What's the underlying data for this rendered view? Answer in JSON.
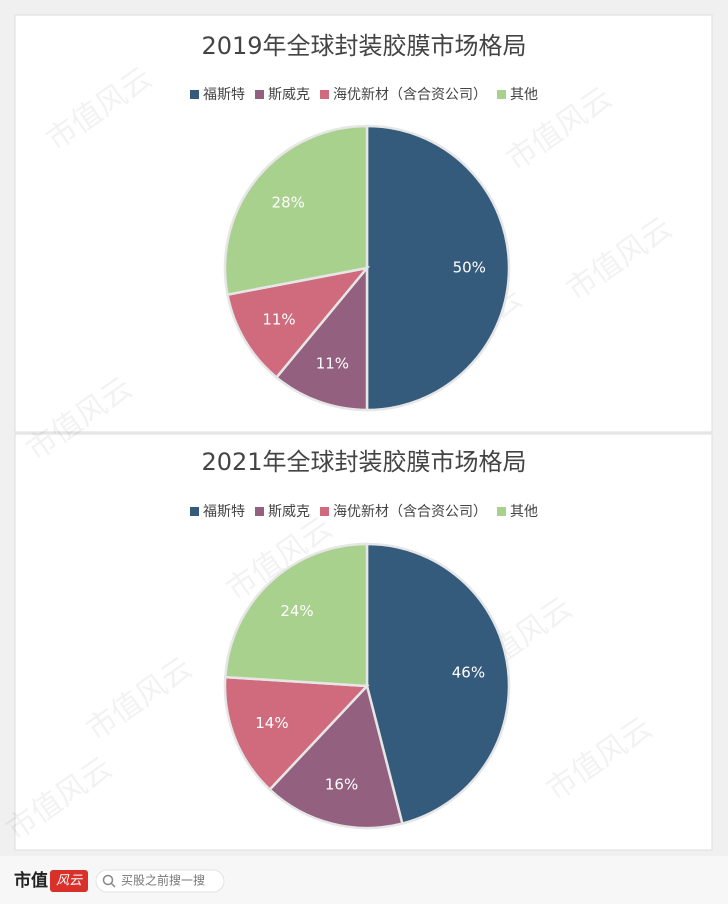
{
  "chart_data": [
    {
      "type": "pie",
      "title": "2019年全球封装胶膜市场格局",
      "categories": [
        "福斯特",
        "斯威克",
        "海优新材（含合资公司）",
        "其他"
      ],
      "values": [
        50,
        11,
        11,
        28
      ],
      "value_labels": [
        "50%",
        "11%",
        "11%",
        "28%"
      ],
      "colors": [
        "#345a7c",
        "#93607f",
        "#cf6b7d",
        "#a9d18e"
      ],
      "legend": "top"
    },
    {
      "type": "pie",
      "title": "2021年全球封装胶膜市场格局",
      "categories": [
        "福斯特",
        "斯威克",
        "海优新材（含合资公司）",
        "其他"
      ],
      "values": [
        46,
        16,
        14,
        24
      ],
      "value_labels": [
        "46%",
        "16%",
        "14%",
        "24%"
      ],
      "colors": [
        "#345a7c",
        "#93607f",
        "#cf6b7d",
        "#a9d18e"
      ],
      "legend": "top"
    }
  ],
  "watermark": "市值风云",
  "footer": {
    "brand": "市值",
    "logo": "风云",
    "search": "买股之前搜一搜"
  }
}
